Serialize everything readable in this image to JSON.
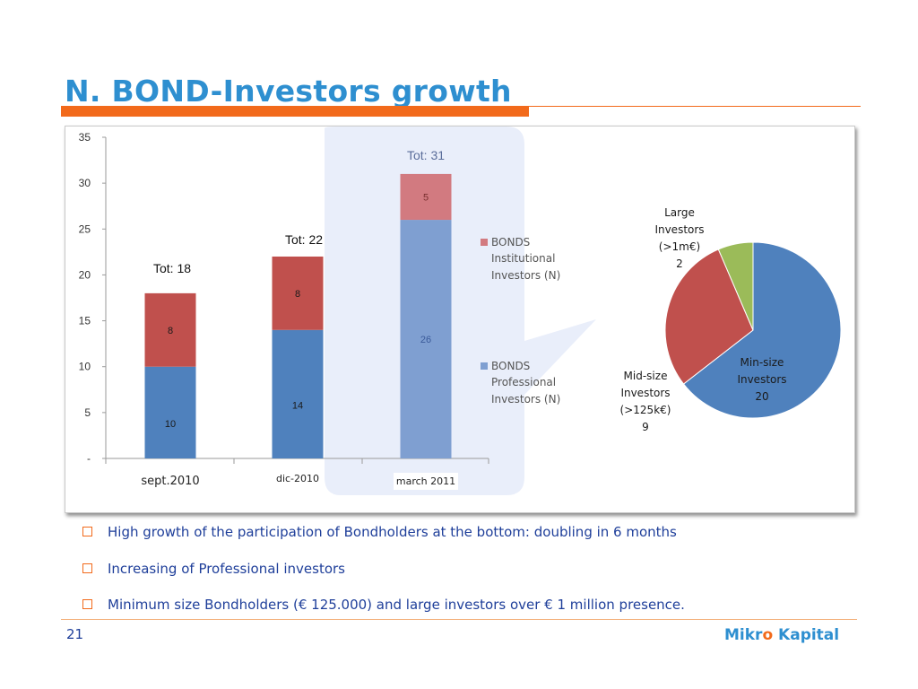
{
  "slide": {
    "title": "N. BOND-Investors growth",
    "page_number": "21",
    "logo": {
      "part1": "Mikr",
      "accent": "o",
      "part2": " Kapital"
    },
    "colors": {
      "title": "#2e8fd0",
      "accent": "#f26a1b",
      "text": "#1f3f9a"
    }
  },
  "bullets": [
    "High growth of the participation of Bondholders at the bottom: doubling in 6 months",
    "Increasing of Professional investors",
    "Minimum size Bondholders (€ 125.000) and large investors over € 1 million presence."
  ],
  "chart_data": [
    {
      "type": "bar",
      "stacked": true,
      "categories": [
        "sept.2010",
        "dic-2010",
        "march 2011"
      ],
      "ylim": [
        0,
        35
      ],
      "yticks": [
        "-",
        "5",
        "10",
        "15",
        "20",
        "25",
        "30",
        "35"
      ],
      "series": [
        {
          "name": "BONDS Professional Investors (N)",
          "values": [
            10,
            14,
            26
          ],
          "colors": [
            "#4f81bd",
            "#4f81bd",
            "#7f9fd1"
          ]
        },
        {
          "name": "BONDS Institutional Investors (N)",
          "values": [
            8,
            8,
            5
          ],
          "colors": [
            "#c0504d",
            "#c0504d",
            "#d27a80"
          ]
        }
      ],
      "totals": [
        "Tot: 18",
        "Tot: 22",
        "Tot: 31"
      ],
      "legend": [
        {
          "line1": "BONDS",
          "line2": "Institutional",
          "line3": "Investors (N)",
          "color": "#d27a80"
        },
        {
          "line1": "BONDS",
          "line2": "Professional",
          "line3": "Investors (N)",
          "color": "#7f9fd1"
        }
      ],
      "grid": false
    },
    {
      "type": "pie",
      "slices": [
        {
          "label": [
            "Min-size",
            "Investors",
            "20"
          ],
          "value": 20,
          "color": "#4f81bd"
        },
        {
          "label": [
            "Mid-size",
            "Investors",
            "(>125k€)",
            "9"
          ],
          "value": 9,
          "color": "#c0504d"
        },
        {
          "label": [
            "Large",
            "Investors",
            "(>1m€)",
            "2"
          ],
          "value": 2,
          "color": "#9bbb59"
        }
      ]
    }
  ]
}
